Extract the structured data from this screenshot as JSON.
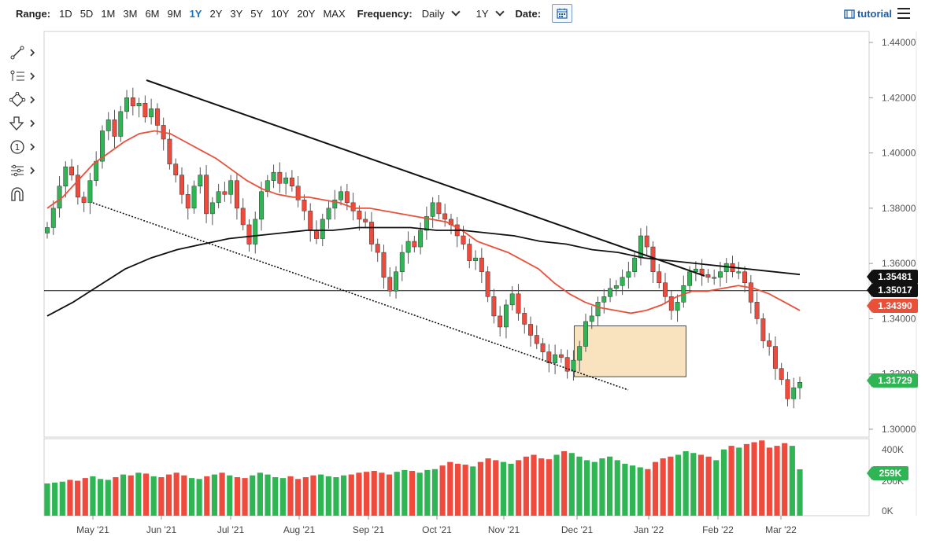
{
  "toolbar": {
    "range_label": "Range:",
    "ranges": [
      "1D",
      "5D",
      "1M",
      "3M",
      "6M",
      "9M",
      "1Y",
      "2Y",
      "3Y",
      "5Y",
      "10Y",
      "20Y",
      "MAX"
    ],
    "active_range": "1Y",
    "frequency_label": "Frequency:",
    "frequency_value": "Daily",
    "period_value": "1Y",
    "date_label": "Date:",
    "tutorial_label": "tutorial"
  },
  "tools": [
    "line-tool-icon",
    "fib-tool-icon",
    "shape-tool-icon",
    "arrow-tool-icon",
    "annotation-tool-icon",
    "measure-tool-icon",
    "magnet-icon"
  ],
  "price_flags": {
    "sma200": "1.35481",
    "hline": "1.35017",
    "sma50": "1.34390",
    "last_price": "1.31729",
    "last_volume": "259K"
  },
  "colors": {
    "up": "#2fb553",
    "down": "#ef4a3c",
    "sma50": "#e9503a",
    "sma200": "#111111",
    "accent": "#1a73c9",
    "box_fill": "#f9e3bf",
    "box_stroke": "#4a4a4a"
  },
  "chart_data": {
    "type": "candlestick",
    "title": "",
    "price_axis": {
      "ticks": [
        "1.44000",
        "1.42000",
        "1.40000",
        "1.38000",
        "1.36000",
        "1.34000",
        "1.32000",
        "1.30000"
      ],
      "ylim": [
        1.3,
        1.44
      ]
    },
    "volume_axis": {
      "ticks": [
        "400K",
        "200K",
        "0K"
      ],
      "ylim": [
        0,
        400000
      ]
    },
    "x_axis": {
      "months": [
        "May '21",
        "Jun '21",
        "Jul '21",
        "Aug '21",
        "Sep '21",
        "Oct '21",
        "Nov '21",
        "Dec '21",
        "Jan '22",
        "Feb '22",
        "Mar '22"
      ]
    },
    "close_series": [
      1.373,
      1.38,
      1.388,
      1.395,
      1.392,
      1.384,
      1.382,
      1.39,
      1.397,
      1.408,
      1.412,
      1.406,
      1.415,
      1.42,
      1.417,
      1.418,
      1.413,
      1.416,
      1.41,
      1.405,
      1.396,
      1.392,
      1.385,
      1.38,
      1.388,
      1.392,
      1.378,
      1.382,
      1.386,
      1.385,
      1.39,
      1.38,
      1.374,
      1.367,
      1.376,
      1.386,
      1.39,
      1.393,
      1.389,
      1.391,
      1.388,
      1.383,
      1.379,
      1.372,
      1.369,
      1.376,
      1.38,
      1.383,
      1.386,
      1.382,
      1.379,
      1.376,
      1.375,
      1.367,
      1.364,
      1.355,
      1.35,
      1.357,
      1.364,
      1.368,
      1.366,
      1.372,
      1.377,
      1.382,
      1.378,
      1.376,
      1.374,
      1.37,
      1.367,
      1.361,
      1.362,
      1.357,
      1.348,
      1.341,
      1.337,
      1.345,
      1.349,
      1.342,
      1.338,
      1.334,
      1.331,
      1.328,
      1.324,
      1.327,
      1.326,
      1.321,
      1.325,
      1.33,
      1.339,
      1.341,
      1.346,
      1.348,
      1.351,
      1.352,
      1.355,
      1.357,
      1.362,
      1.37,
      1.366,
      1.357,
      1.353,
      1.348,
      1.343,
      1.346,
      1.352,
      1.357,
      1.358,
      1.356,
      1.355,
      1.355,
      1.357,
      1.36,
      1.357,
      1.357,
      1.353,
      1.346,
      1.34,
      1.332,
      1.33,
      1.322,
      1.318,
      1.311,
      1.315,
      1.317
    ],
    "sma50_series": [
      1.38,
      1.384,
      1.39,
      1.396,
      1.4,
      1.404,
      1.407,
      1.408,
      1.407,
      1.404,
      1.401,
      1.398,
      1.394,
      1.39,
      1.387,
      1.385,
      1.384,
      1.384,
      1.383,
      1.382,
      1.38,
      1.38,
      1.379,
      1.378,
      1.377,
      1.376,
      1.375,
      1.372,
      1.368,
      1.366,
      1.364,
      1.361,
      1.358,
      1.353,
      1.349,
      1.346,
      1.344,
      1.343,
      1.342,
      1.343,
      1.345,
      1.348,
      1.35,
      1.35,
      1.351,
      1.352,
      1.351,
      1.349,
      1.346,
      1.343
    ],
    "sma200_series": [
      1.341,
      1.346,
      1.352,
      1.358,
      1.362,
      1.365,
      1.367,
      1.369,
      1.37,
      1.371,
      1.372,
      1.372,
      1.373,
      1.373,
      1.373,
      1.372,
      1.372,
      1.371,
      1.37,
      1.368,
      1.367,
      1.365,
      1.364,
      1.362,
      1.361,
      1.36,
      1.359,
      1.358,
      1.357,
      1.356
    ],
    "horizontal_line": 1.35017,
    "volume_series": [
      180000,
      185000,
      190000,
      200000,
      195000,
      210000,
      220000,
      205000,
      200000,
      215000,
      230000,
      225000,
      240000,
      235000,
      220000,
      215000,
      230000,
      240000,
      225000,
      210000,
      205000,
      220000,
      230000,
      240000,
      225000,
      215000,
      210000,
      225000,
      240000,
      230000,
      215000,
      210000,
      220000,
      205000,
      215000,
      225000,
      230000,
      220000,
      215000,
      225000,
      230000,
      240000,
      245000,
      250000,
      240000,
      230000,
      245000,
      255000,
      250000,
      240000,
      255000,
      260000,
      280000,
      300000,
      290000,
      285000,
      275000,
      300000,
      320000,
      310000,
      300000,
      290000,
      310000,
      330000,
      340000,
      320000,
      315000,
      340000,
      360000,
      350000,
      330000,
      310000,
      300000,
      320000,
      330000,
      310000,
      290000,
      280000,
      270000,
      260000,
      300000,
      320000,
      330000,
      340000,
      360000,
      350000,
      340000,
      330000,
      310000,
      370000,
      390000,
      380000,
      400000,
      410000,
      420000,
      380000,
      390000,
      405000,
      390000,
      259000
    ]
  }
}
